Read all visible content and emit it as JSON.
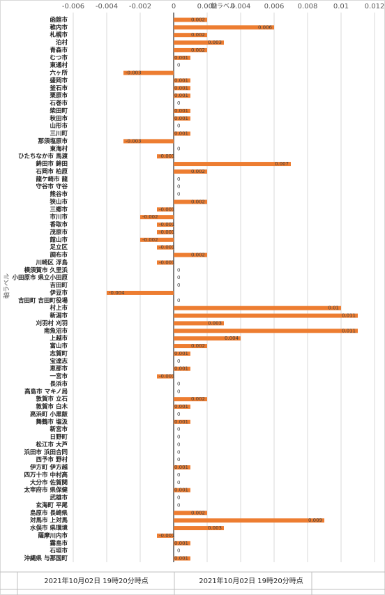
{
  "chart_data": {
    "type": "barh",
    "x_label": "軸ラベル",
    "y_label": "軸ラベル",
    "categories": [
      "函館市",
      "稚内市",
      "札幌市",
      "泊村",
      "青森市",
      "むつ市",
      "東通村",
      "六ヶ所",
      "盛岡市",
      "釜石市",
      "栗原市",
      "石巻市",
      "柴田町",
      "秋田市",
      "山形市",
      "三川町",
      "那須塩原市",
      "東海村",
      "ひたちなか市 馬渡",
      "鉾田市 鉾田",
      "石岡市 柏原",
      "龍ケ崎市 龍",
      "守谷市 守谷",
      "熊谷市",
      "狭山市",
      "三郷市",
      "市川市",
      "香取市",
      "茂原市",
      "館山市",
      "足立区",
      "調布市",
      "川崎区 浮島",
      "横須賀市 久里浜",
      "小田原市 県立小田原",
      "吉田町",
      "伊豆市",
      "吉田町 吉田町役場",
      "村上市",
      "新潟市",
      "刈羽村 刈羽",
      "南魚沼市",
      "上越市",
      "富山市",
      "志賀町",
      "宝達志",
      "恵那市",
      "一宮市",
      "長浜市",
      "高島市 マキノ局",
      "敦賀市 立石",
      "敦賀市 白木",
      "高浜町 小黒飯",
      "舞鶴市 塩汲",
      "新宮市",
      "日野町",
      "松江市 大芦",
      "浜田市 浜田合同",
      "西予市 野村",
      "伊方町 伊方越",
      "四万十市 中村高",
      "大分市 佐賀関",
      "太宰府市 県保健",
      "武雄市",
      "玄海町 平尾",
      "島原市 長崎県",
      "対馬市 上対馬",
      "水俣市 県環境",
      "薩摩川内市",
      "霧島市",
      "石垣市",
      "沖縄県 与那国町"
    ],
    "values": [
      0.002,
      0.006,
      0.002,
      0.003,
      0.002,
      0.001,
      0,
      -0.003,
      0.001,
      0.001,
      0.001,
      0,
      0.001,
      0.001,
      0,
      0.001,
      -0.003,
      0,
      -0.001,
      0.007,
      0.002,
      0,
      0,
      0,
      0.002,
      -0.001,
      -0.002,
      -0.001,
      -0.001,
      -0.002,
      -0.001,
      0.002,
      -0.001,
      0,
      0,
      0,
      -0.004,
      0,
      0.01,
      0.011,
      0.003,
      0.011,
      0.004,
      0.002,
      0.001,
      0,
      0.001,
      -0.001,
      0,
      0,
      0.002,
      0.001,
      0,
      0.001,
      0,
      0,
      0,
      0,
      0,
      0.001,
      0,
      0,
      0.001,
      0,
      0,
      0.002,
      0.009,
      0.003,
      -0.001,
      0.001,
      0,
      0.001
    ],
    "color": "#ed7d31",
    "xlim": [
      -0.006,
      0.012
    ],
    "xticks": [
      -0.006,
      -0.004,
      -0.002,
      0,
      0.002,
      0.004,
      0.006,
      0.008,
      0.01,
      0.012
    ],
    "grid": true
  },
  "footer": {
    "cells": [
      "2021年10月02日 19時20分時点",
      "2021年10月02日 19時20分時点"
    ]
  }
}
